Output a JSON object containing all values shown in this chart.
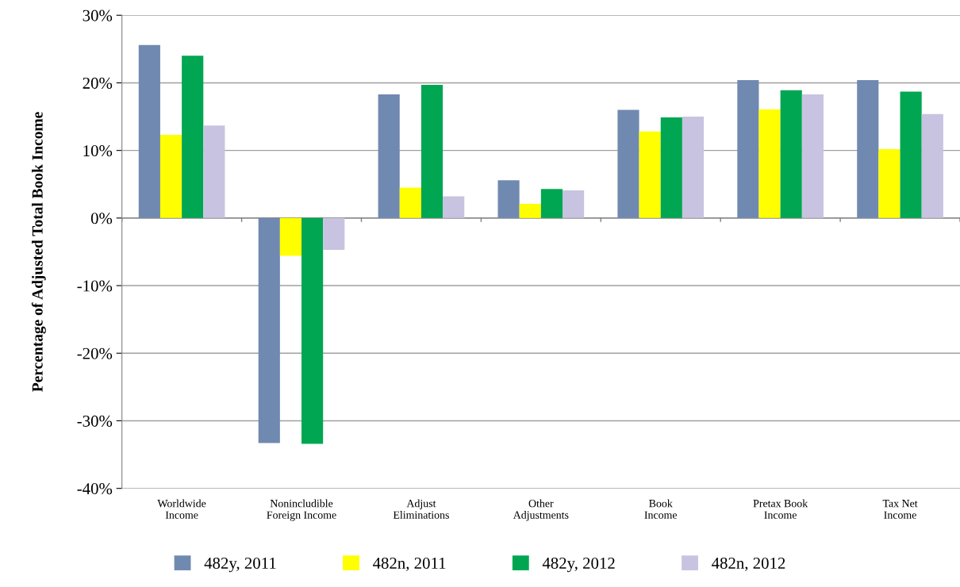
{
  "chart_data": {
    "type": "bar",
    "ylabel": "Percentage of Adjusted Total Book Income",
    "categories": [
      "Worldwide\nIncome",
      "Nonincludible\nForeign Income",
      "Adjust\nEliminations",
      "Other\nAdjustments",
      "Book\nIncome",
      "Pretax Book\nIncome",
      "Tax Net\nIncome"
    ],
    "series": [
      {
        "name": "482y, 2011",
        "color": "#7089b0",
        "values": [
          25.6,
          -33.3,
          18.3,
          5.6,
          16.0,
          20.4,
          20.4
        ]
      },
      {
        "name": "482n, 2011",
        "color": "#ffff00",
        "values": [
          12.3,
          -5.6,
          4.5,
          2.1,
          12.8,
          16.1,
          10.2
        ]
      },
      {
        "name": "482y, 2012",
        "color": "#00a651",
        "values": [
          24.0,
          -33.4,
          19.7,
          4.3,
          14.9,
          18.9,
          18.7
        ]
      },
      {
        "name": "482n, 2012",
        "color": "#c8c3e0",
        "values": [
          13.7,
          -4.7,
          3.2,
          4.1,
          15.0,
          18.3,
          15.4
        ]
      }
    ],
    "ylim": [
      -40,
      30
    ],
    "yticks": [
      {
        "value": -40,
        "label": "-40%"
      },
      {
        "value": -30,
        "label": "-30%"
      },
      {
        "value": -20,
        "label": "-20%"
      },
      {
        "value": -10,
        "label": "-10%"
      },
      {
        "value": 0,
        "label": "0%"
      },
      {
        "value": 10,
        "label": "10%"
      },
      {
        "value": 20,
        "label": "20%"
      },
      {
        "value": 30,
        "label": "30%"
      }
    ],
    "grid": "y",
    "legend": "bottom"
  }
}
